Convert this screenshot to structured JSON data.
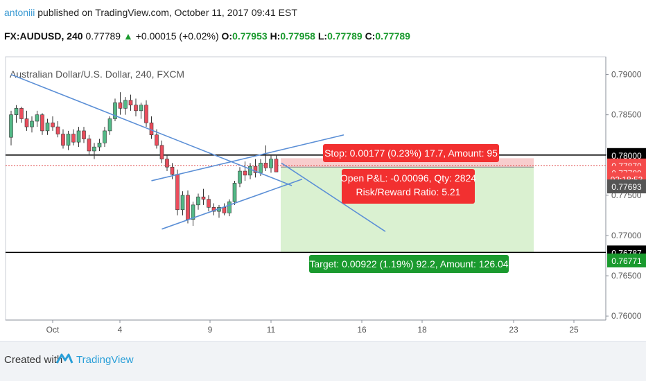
{
  "header": {
    "author": "antoniii",
    "published": " published on TradingView.com, October 11, 2017 09:41 EST",
    "symbol": "FX:AUDUSD, 240",
    "last": "0.77789",
    "change": "+0.00015 (+0.02%)",
    "open_label": "O:",
    "open": "0.77953",
    "high_label": "H:",
    "high": "0.77958",
    "low_label": "L:",
    "low": "0.77789",
    "close_label": "C:",
    "close": "0.77789"
  },
  "chart_data": {
    "type": "candlestick",
    "title": "Australian Dollar/U.S. Dollar, 240, FXCM",
    "x_ticks": [
      "Oct",
      "4",
      "9",
      "11",
      "16",
      "18",
      "23",
      "25"
    ],
    "y_ticks": [
      "0.79000",
      "0.78500",
      "0.78000",
      "0.77500",
      "0.77000",
      "0.76500",
      "0.76000"
    ],
    "ylim": [
      0.7595,
      0.7922
    ],
    "candles": [
      [
        0.7822,
        0.7855,
        0.7812,
        0.785
      ],
      [
        0.785,
        0.7862,
        0.784,
        0.7858
      ],
      [
        0.7858,
        0.786,
        0.784,
        0.7845
      ],
      [
        0.7845,
        0.7855,
        0.783,
        0.7835
      ],
      [
        0.7835,
        0.7848,
        0.7828,
        0.7842
      ],
      [
        0.7842,
        0.7855,
        0.7835,
        0.785
      ],
      [
        0.785,
        0.7852,
        0.7825,
        0.783
      ],
      [
        0.783,
        0.7845,
        0.7825,
        0.784
      ],
      [
        0.784,
        0.7848,
        0.783,
        0.7835
      ],
      [
        0.7835,
        0.7842,
        0.7822,
        0.7826
      ],
      [
        0.7826,
        0.7832,
        0.7808,
        0.7812
      ],
      [
        0.7812,
        0.783,
        0.7806,
        0.7826
      ],
      [
        0.7826,
        0.7832,
        0.7812,
        0.7816
      ],
      [
        0.7816,
        0.7835,
        0.781,
        0.783
      ],
      [
        0.783,
        0.7835,
        0.7815,
        0.782
      ],
      [
        0.782,
        0.7825,
        0.78,
        0.7805
      ],
      [
        0.7805,
        0.7815,
        0.7795,
        0.781
      ],
      [
        0.781,
        0.782,
        0.7805,
        0.7815
      ],
      [
        0.7815,
        0.7835,
        0.781,
        0.783
      ],
      [
        0.783,
        0.7848,
        0.7825,
        0.7845
      ],
      [
        0.7845,
        0.787,
        0.7842,
        0.7865
      ],
      [
        0.7865,
        0.7878,
        0.785,
        0.7858
      ],
      [
        0.7858,
        0.7872,
        0.785,
        0.7868
      ],
      [
        0.7868,
        0.7875,
        0.7855,
        0.7862
      ],
      [
        0.7862,
        0.787,
        0.7848,
        0.7855
      ],
      [
        0.7855,
        0.7865,
        0.7845,
        0.7862
      ],
      [
        0.7862,
        0.7868,
        0.7835,
        0.784
      ],
      [
        0.784,
        0.7848,
        0.782,
        0.7825
      ],
      [
        0.7825,
        0.7832,
        0.7808,
        0.7812
      ],
      [
        0.7812,
        0.7818,
        0.779,
        0.7795
      ],
      [
        0.7795,
        0.78,
        0.778,
        0.7785
      ],
      [
        0.7785,
        0.779,
        0.777,
        0.7776
      ],
      [
        0.7776,
        0.7782,
        0.7725,
        0.7732
      ],
      [
        0.7732,
        0.7755,
        0.7725,
        0.775
      ],
      [
        0.775,
        0.7756,
        0.7715,
        0.772
      ],
      [
        0.772,
        0.7742,
        0.7712,
        0.7738
      ],
      [
        0.7738,
        0.7752,
        0.7732,
        0.7748
      ],
      [
        0.7748,
        0.7758,
        0.7738,
        0.7745
      ],
      [
        0.7745,
        0.775,
        0.773,
        0.7735
      ],
      [
        0.7735,
        0.774,
        0.7725,
        0.773
      ],
      [
        0.773,
        0.7738,
        0.7722,
        0.7735
      ],
      [
        0.7735,
        0.774,
        0.7725,
        0.7728
      ],
      [
        0.7728,
        0.7745,
        0.7724,
        0.7742
      ],
      [
        0.7742,
        0.7768,
        0.7738,
        0.7765
      ],
      [
        0.7765,
        0.7785,
        0.776,
        0.778
      ],
      [
        0.778,
        0.7792,
        0.7768,
        0.7775
      ],
      [
        0.7775,
        0.779,
        0.777,
        0.7786
      ],
      [
        0.7786,
        0.7795,
        0.7772,
        0.7778
      ],
      [
        0.7778,
        0.7795,
        0.7774,
        0.779
      ],
      [
        0.779,
        0.7812,
        0.778,
        0.7784
      ],
      [
        0.7784,
        0.78,
        0.7778,
        0.7795
      ],
      [
        0.7795,
        0.78,
        0.7779,
        0.7779
      ]
    ],
    "lines": [
      {
        "from": [
          0,
          0.79
        ],
        "to": [
          54,
          0.7762
        ]
      },
      {
        "from": [
          27,
          0.7768
        ],
        "to": [
          64,
          0.7825
        ]
      },
      {
        "from": [
          29,
          0.7708
        ],
        "to": [
          56,
          0.777
        ]
      },
      {
        "from": [
          52,
          0.779
        ],
        "to": [
          72,
          0.7705
        ]
      }
    ],
    "hlines": [
      0.78,
      0.7679
    ],
    "current_price": 0.7787,
    "position": {
      "entry": 0.7785,
      "stop": 0.7796,
      "target": 0.7679,
      "x_from": 55,
      "x_to": 79
    },
    "labels": {
      "stop": "Stop: 0.00177 (0.23%) 17.7, Amount: 95",
      "pnl": "Open P&L: -0.00096, Qty: 2824",
      "rr": "Risk/Reward Ratio: 5.21",
      "target": "Target: 0.00922 (1.19%) 92.2, Amount: 126.04"
    },
    "price_tags": [
      {
        "value": "0.78000",
        "y": 0.78,
        "color": "#000000"
      },
      {
        "value": "0.77870",
        "y": 0.7787,
        "color": "#f44a4a"
      },
      {
        "value": "0.77789",
        "y": 0.7778,
        "color": "#f44a4a"
      },
      {
        "value": "02:18:53",
        "y": 0.777,
        "color": "#f44a4a"
      },
      {
        "value": "0.77693",
        "y": 0.7761,
        "color": "#555555"
      },
      {
        "value": "0.76787",
        "y": 0.7679,
        "color": "#000000"
      },
      {
        "value": "0.76771",
        "y": 0.7669,
        "color": "#1a9a2e"
      }
    ]
  },
  "footer": {
    "created": "Created with",
    "brand": "TradingView"
  }
}
